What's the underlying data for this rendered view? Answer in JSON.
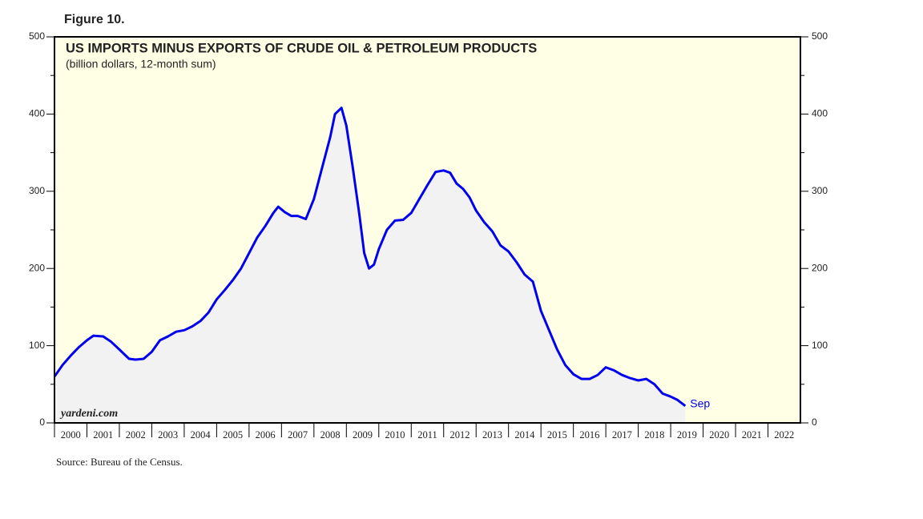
{
  "chart_data": {
    "type": "line",
    "figure_label": "Figure 10.",
    "title": "US IMPORTS MINUS EXPORTS OF CRUDE OIL & PETROLEUM PRODUCTS",
    "subtitle": "(billion dollars, 12-month sum)",
    "watermark": "yardeni.com",
    "source": "Source: Bureau of the Census.",
    "end_label": "Sep",
    "xlim": [
      2000,
      2023
    ],
    "xticks": [
      2000,
      2001,
      2002,
      2003,
      2004,
      2005,
      2006,
      2007,
      2008,
      2009,
      2010,
      2011,
      2012,
      2013,
      2014,
      2015,
      2016,
      2017,
      2018,
      2019,
      2020,
      2021,
      2022
    ],
    "ylim": [
      0,
      500
    ],
    "yticks": [
      0,
      100,
      200,
      300,
      400,
      500
    ],
    "background": "#ffffe6",
    "area_color": "#f2f2f2",
    "series": [
      {
        "color": "#0000ee",
        "x": [
          2000.0,
          2000.25,
          2000.5,
          2000.75,
          2001.0,
          2001.2,
          2001.5,
          2001.75,
          2002.0,
          2002.3,
          2002.5,
          2002.75,
          2003.0,
          2003.25,
          2003.5,
          2003.75,
          2004.0,
          2004.25,
          2004.5,
          2004.75,
          2005.0,
          2005.25,
          2005.5,
          2005.75,
          2006.0,
          2006.25,
          2006.5,
          2006.75,
          2006.9,
          2007.1,
          2007.3,
          2007.5,
          2007.75,
          2008.0,
          2008.25,
          2008.5,
          2008.65,
          2008.85,
          2009.0,
          2009.2,
          2009.4,
          2009.55,
          2009.7,
          2009.85,
          2010.0,
          2010.25,
          2010.5,
          2010.75,
          2011.0,
          2011.25,
          2011.5,
          2011.75,
          2012.0,
          2012.2,
          2012.4,
          2012.6,
          2012.8,
          2013.0,
          2013.25,
          2013.5,
          2013.75,
          2014.0,
          2014.25,
          2014.5,
          2014.75,
          2015.0,
          2015.25,
          2015.5,
          2015.75,
          2016.0,
          2016.25,
          2016.5,
          2016.75,
          2017.0,
          2017.25,
          2017.5,
          2017.75,
          2018.0,
          2018.25,
          2018.5,
          2018.75,
          2019.0,
          2019.2,
          2019.45
        ],
        "values": [
          60,
          75,
          87,
          98,
          107,
          113,
          112,
          105,
          95,
          83,
          82,
          83,
          92,
          107,
          112,
          118,
          120,
          125,
          132,
          143,
          160,
          172,
          185,
          200,
          220,
          240,
          255,
          272,
          280,
          273,
          268,
          268,
          264,
          290,
          330,
          370,
          400,
          408,
          385,
          330,
          270,
          220,
          200,
          205,
          225,
          250,
          262,
          263,
          272,
          290,
          308,
          325,
          327,
          324,
          310,
          303,
          292,
          275,
          260,
          248,
          230,
          222,
          208,
          192,
          183,
          145,
          120,
          95,
          75,
          63,
          57,
          57,
          62,
          72,
          68,
          62,
          58,
          55,
          57,
          50,
          38,
          34,
          30,
          22
        ]
      }
    ]
  }
}
